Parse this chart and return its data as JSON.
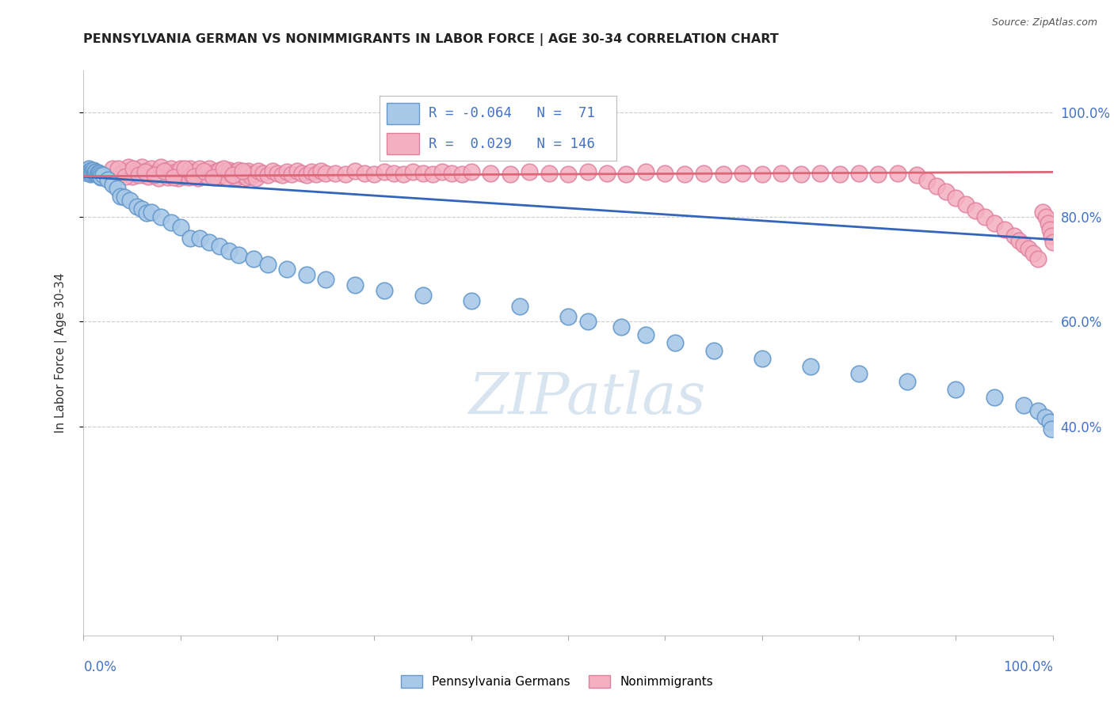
{
  "title": "PENNSYLVANIA GERMAN VS NONIMMIGRANTS IN LABOR FORCE | AGE 30-34 CORRELATION CHART",
  "source": "Source: ZipAtlas.com",
  "ylabel": "In Labor Force | Age 30-34",
  "legend_blue_label": "Pennsylvania Germans",
  "legend_pink_label": "Nonimmigrants",
  "blue_R": -0.064,
  "blue_N": 71,
  "pink_R": 0.029,
  "pink_N": 146,
  "blue_color": "#a8c8e8",
  "blue_edge_color": "#6699cc",
  "pink_color": "#f4b0c0",
  "pink_edge_color": "#e080a0",
  "blue_line_color": "#3366bb",
  "pink_line_color": "#dd6677",
  "background_color": "#ffffff",
  "grid_color": "#cccccc",
  "right_tick_color": "#4472c4",
  "title_color": "#222222",
  "source_color": "#555555",
  "watermark_color": "#d8e4f0",
  "blue_line_y0": 0.877,
  "blue_line_y1": 0.757,
  "pink_line_y0": 0.878,
  "pink_line_y1": 0.886,
  "xlim": [
    0,
    1.0
  ],
  "ylim": [
    0.0,
    1.08
  ],
  "yticks": [
    0.4,
    0.6,
    0.8,
    1.0
  ],
  "ytick_labels": [
    "40.0%",
    "60.0%",
    "80.0%",
    "100.0%"
  ],
  "xtick_labels_show": false,
  "blue_scatter_x": [
    0.002,
    0.003,
    0.004,
    0.005,
    0.005,
    0.006,
    0.006,
    0.007,
    0.007,
    0.008,
    0.008,
    0.009,
    0.01,
    0.01,
    0.011,
    0.012,
    0.013,
    0.013,
    0.014,
    0.015,
    0.016,
    0.017,
    0.018,
    0.018,
    0.02,
    0.025,
    0.03,
    0.035,
    0.038,
    0.042,
    0.048,
    0.055,
    0.06,
    0.065,
    0.07,
    0.08,
    0.09,
    0.1,
    0.11,
    0.12,
    0.13,
    0.14,
    0.15,
    0.16,
    0.175,
    0.19,
    0.21,
    0.23,
    0.25,
    0.28,
    0.31,
    0.35,
    0.4,
    0.45,
    0.5,
    0.52,
    0.555,
    0.58,
    0.61,
    0.65,
    0.7,
    0.75,
    0.8,
    0.85,
    0.9,
    0.94,
    0.97,
    0.985,
    0.992,
    0.997,
    0.999
  ],
  "blue_scatter_y": [
    0.885,
    0.89,
    0.888,
    0.892,
    0.886,
    0.887,
    0.885,
    0.888,
    0.882,
    0.89,
    0.885,
    0.883,
    0.887,
    0.889,
    0.883,
    0.887,
    0.884,
    0.886,
    0.882,
    0.885,
    0.883,
    0.88,
    0.876,
    0.878,
    0.88,
    0.872,
    0.862,
    0.855,
    0.84,
    0.838,
    0.832,
    0.82,
    0.815,
    0.808,
    0.81,
    0.8,
    0.79,
    0.78,
    0.76,
    0.76,
    0.752,
    0.745,
    0.735,
    0.728,
    0.72,
    0.71,
    0.7,
    0.69,
    0.68,
    0.67,
    0.66,
    0.65,
    0.64,
    0.63,
    0.61,
    0.6,
    0.59,
    0.575,
    0.56,
    0.545,
    0.53,
    0.515,
    0.5,
    0.485,
    0.47,
    0.455,
    0.44,
    0.43,
    0.418,
    0.408,
    0.395
  ],
  "pink_scatter_x": [
    0.03,
    0.038,
    0.042,
    0.046,
    0.05,
    0.053,
    0.055,
    0.058,
    0.06,
    0.062,
    0.065,
    0.067,
    0.07,
    0.072,
    0.075,
    0.077,
    0.08,
    0.082,
    0.085,
    0.087,
    0.09,
    0.092,
    0.095,
    0.098,
    0.1,
    0.103,
    0.106,
    0.108,
    0.11,
    0.112,
    0.115,
    0.118,
    0.12,
    0.123,
    0.126,
    0.128,
    0.13,
    0.133,
    0.136,
    0.138,
    0.14,
    0.143,
    0.146,
    0.148,
    0.15,
    0.153,
    0.156,
    0.158,
    0.16,
    0.163,
    0.166,
    0.168,
    0.17,
    0.173,
    0.176,
    0.178,
    0.18,
    0.185,
    0.19,
    0.195,
    0.2,
    0.205,
    0.21,
    0.215,
    0.22,
    0.225,
    0.23,
    0.235,
    0.24,
    0.245,
    0.25,
    0.26,
    0.27,
    0.28,
    0.29,
    0.3,
    0.31,
    0.32,
    0.33,
    0.34,
    0.35,
    0.36,
    0.37,
    0.38,
    0.39,
    0.4,
    0.42,
    0.44,
    0.46,
    0.48,
    0.5,
    0.52,
    0.54,
    0.56,
    0.58,
    0.6,
    0.62,
    0.64,
    0.66,
    0.68,
    0.7,
    0.72,
    0.74,
    0.76,
    0.78,
    0.8,
    0.82,
    0.84,
    0.86,
    0.87,
    0.88,
    0.89,
    0.9,
    0.91,
    0.92,
    0.93,
    0.94,
    0.95,
    0.96,
    0.965,
    0.97,
    0.975,
    0.98,
    0.985,
    0.99,
    0.993,
    0.995,
    0.997,
    0.999,
    1.0,
    0.036,
    0.043,
    0.051,
    0.057,
    0.063,
    0.073,
    0.083,
    0.093,
    0.104,
    0.114,
    0.124,
    0.134,
    0.144,
    0.154,
    0.164
  ],
  "pink_scatter_y": [
    0.892,
    0.882,
    0.888,
    0.895,
    0.878,
    0.885,
    0.89,
    0.882,
    0.895,
    0.88,
    0.888,
    0.878,
    0.892,
    0.88,
    0.885,
    0.875,
    0.895,
    0.882,
    0.888,
    0.876,
    0.892,
    0.88,
    0.886,
    0.874,
    0.892,
    0.878,
    0.884,
    0.876,
    0.892,
    0.88,
    0.886,
    0.874,
    0.892,
    0.88,
    0.886,
    0.878,
    0.892,
    0.88,
    0.886,
    0.876,
    0.89,
    0.88,
    0.886,
    0.876,
    0.89,
    0.88,
    0.886,
    0.876,
    0.89,
    0.88,
    0.886,
    0.876,
    0.888,
    0.878,
    0.884,
    0.874,
    0.888,
    0.884,
    0.88,
    0.888,
    0.884,
    0.88,
    0.886,
    0.882,
    0.888,
    0.884,
    0.88,
    0.886,
    0.882,
    0.888,
    0.884,
    0.884,
    0.882,
    0.888,
    0.884,
    0.882,
    0.886,
    0.884,
    0.882,
    0.886,
    0.884,
    0.882,
    0.886,
    0.884,
    0.882,
    0.886,
    0.884,
    0.882,
    0.886,
    0.884,
    0.882,
    0.886,
    0.884,
    0.882,
    0.886,
    0.884,
    0.882,
    0.884,
    0.882,
    0.884,
    0.882,
    0.884,
    0.882,
    0.884,
    0.882,
    0.884,
    0.882,
    0.884,
    0.88,
    0.87,
    0.86,
    0.848,
    0.836,
    0.824,
    0.812,
    0.8,
    0.788,
    0.776,
    0.764,
    0.755,
    0.748,
    0.74,
    0.73,
    0.72,
    0.81,
    0.8,
    0.788,
    0.776,
    0.764,
    0.752,
    0.892,
    0.878,
    0.892,
    0.88,
    0.886,
    0.88,
    0.888,
    0.876,
    0.892,
    0.878,
    0.888,
    0.876,
    0.892,
    0.88,
    0.888
  ]
}
